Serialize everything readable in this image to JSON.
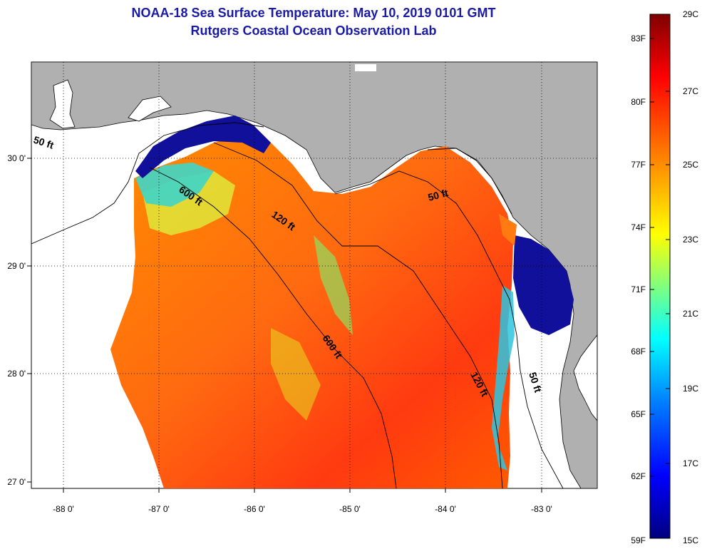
{
  "title": {
    "line1": "NOAA-18 Sea Surface Temperature:  May 10, 2019 0101 GMT",
    "line2": "Rutgers Coastal Ocean Observation Lab"
  },
  "map": {
    "lat_ticks": [
      "30 0'",
      "29 0'",
      "28 0'",
      "27 0'"
    ],
    "lon_ticks": [
      "-88 0'",
      "-87 0'",
      "-86 0'",
      "-85 0'",
      "-84 0'",
      "-83 0'"
    ],
    "contours": [
      {
        "label": "50 ft"
      },
      {
        "label": "600 ft"
      },
      {
        "label": "120 ft"
      },
      {
        "label": "50 ft"
      },
      {
        "label": "600 ft"
      },
      {
        "label": "120 ft"
      },
      {
        "label": "50 ft"
      }
    ],
    "colors": {
      "land": "#b0b0b0",
      "nodata": "#ffffff",
      "border": "#000000"
    }
  },
  "colorbar": {
    "fahrenheit_labels": [
      "83F",
      "80F",
      "77F",
      "74F",
      "71F",
      "68F",
      "65F",
      "62F",
      "59F"
    ],
    "celsius_labels": [
      "29C",
      "27C",
      "25C",
      "23C",
      "21C",
      "19C",
      "17C",
      "15C"
    ],
    "gradient": [
      "#7f0000",
      "#ff0000",
      "#ff7f00",
      "#ffff00",
      "#7fff7f",
      "#00ffff",
      "#007fff",
      "#0000ff",
      "#00007f"
    ]
  }
}
